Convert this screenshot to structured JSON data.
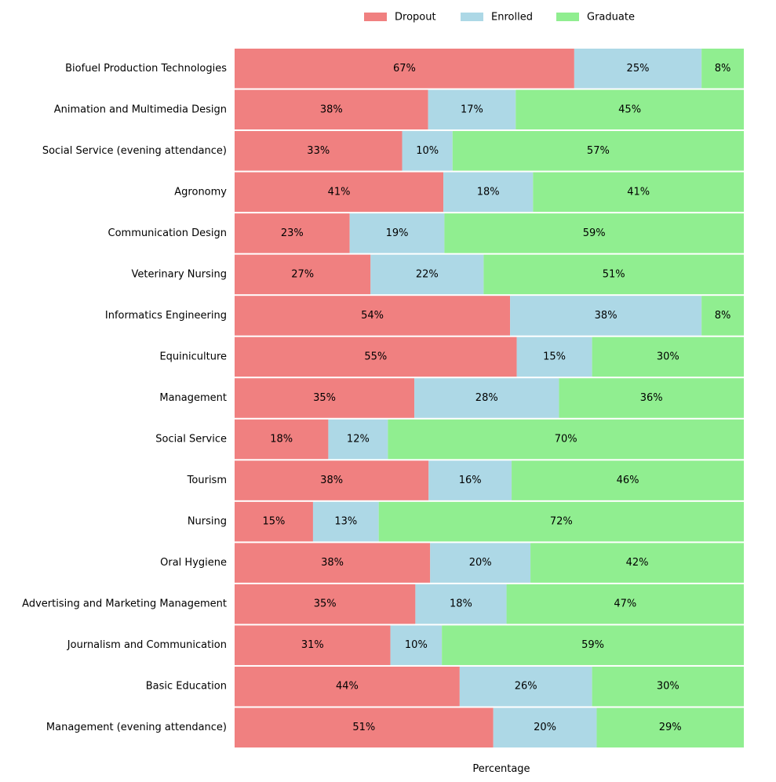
{
  "chart_data": {
    "type": "bar",
    "orientation": "horizontal",
    "stacked": true,
    "normalized": true,
    "xlabel": "Percentage",
    "ylabel": "",
    "xlim": [
      0,
      100
    ],
    "grid": false,
    "legend_position": "top-center",
    "categories": [
      "Biofuel Production Technologies",
      "Animation and Multimedia Design",
      "Social Service (evening attendance)",
      "Agronomy",
      "Communication Design",
      "Veterinary Nursing",
      "Informatics Engineering",
      "Equiniculture",
      "Management",
      "Social Service",
      "Tourism",
      "Nursing",
      "Oral Hygiene",
      "Advertising and Marketing Management",
      "Journalism and Communication",
      "Basic Education",
      "Management (evening attendance)"
    ],
    "series": [
      {
        "name": "Dropout",
        "color": "#f08080",
        "values": [
          66.7,
          38.0,
          32.9,
          41.0,
          22.6,
          26.7,
          54.1,
          55.4,
          35.3,
          18.4,
          38.1,
          15.4,
          38.4,
          35.5,
          30.6,
          44.2,
          50.8
        ],
        "labels": [
          "67%",
          "38%",
          "33%",
          "41%",
          "23%",
          "27%",
          "54%",
          "55%",
          "35%",
          "18%",
          "38%",
          "15%",
          "38%",
          "35%",
          "31%",
          "44%",
          "51%"
        ]
      },
      {
        "name": "Enrolled",
        "color": "#add8e6",
        "values": [
          25.0,
          17.2,
          9.9,
          17.6,
          18.6,
          22.2,
          37.6,
          14.8,
          28.4,
          11.7,
          16.3,
          12.9,
          19.7,
          17.9,
          10.1,
          26.0,
          20.3
        ],
        "labels": [
          "25%",
          "17%",
          "10%",
          "18%",
          "19%",
          "22%",
          "38%",
          "15%",
          "28%",
          "12%",
          "16%",
          "13%",
          "20%",
          "18%",
          "10%",
          "26%",
          "20%"
        ]
      },
      {
        "name": "Graduate",
        "color": "#90ee90",
        "values": [
          8.3,
          44.8,
          57.2,
          41.4,
          58.8,
          51.1,
          8.3,
          29.8,
          36.3,
          69.9,
          45.6,
          71.7,
          41.9,
          46.6,
          59.3,
          29.8,
          28.9
        ],
        "labels": [
          "8%",
          "45%",
          "57%",
          "41%",
          "59%",
          "51%",
          "8%",
          "30%",
          "36%",
          "70%",
          "46%",
          "72%",
          "42%",
          "47%",
          "59%",
          "30%",
          "29%"
        ]
      }
    ]
  }
}
